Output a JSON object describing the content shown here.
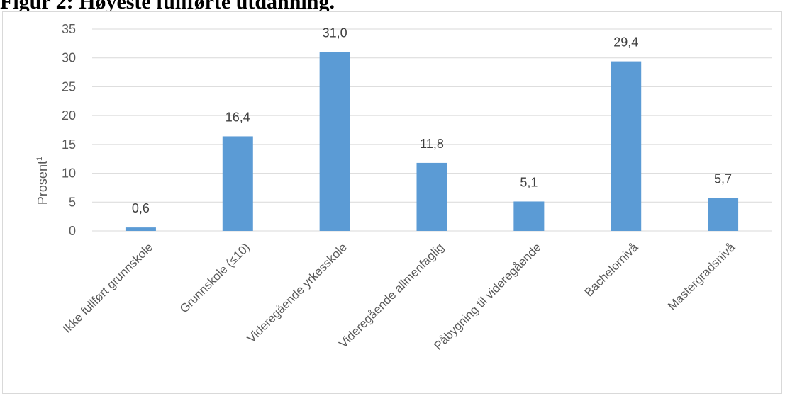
{
  "title": "Figur 2: Høyeste fullførte utdanning.",
  "chart_data": {
    "type": "bar",
    "title": "",
    "xlabel": "",
    "ylabel": "Prosent",
    "ylabel_superscript": "1",
    "categories": [
      "Ikke fullført grunnskole",
      "Grunnskole (≤10)",
      "Videregående yrkesskole",
      "Videregående allmenfaglig",
      "Påbygning til videregående",
      "Bachelornivå",
      "Mastergradsnivå"
    ],
    "values": [
      0.6,
      16.4,
      31.0,
      11.8,
      5.1,
      29.4,
      5.7
    ],
    "value_labels": [
      "0,6",
      "16,4",
      "31,0",
      "11,8",
      "5,1",
      "29,4",
      "5,7"
    ],
    "ylim": [
      0,
      35
    ],
    "yticks": [
      0,
      5,
      10,
      15,
      20,
      25,
      30,
      35
    ],
    "grid": true,
    "legend": "none",
    "bar_color": "#5b9bd5"
  }
}
